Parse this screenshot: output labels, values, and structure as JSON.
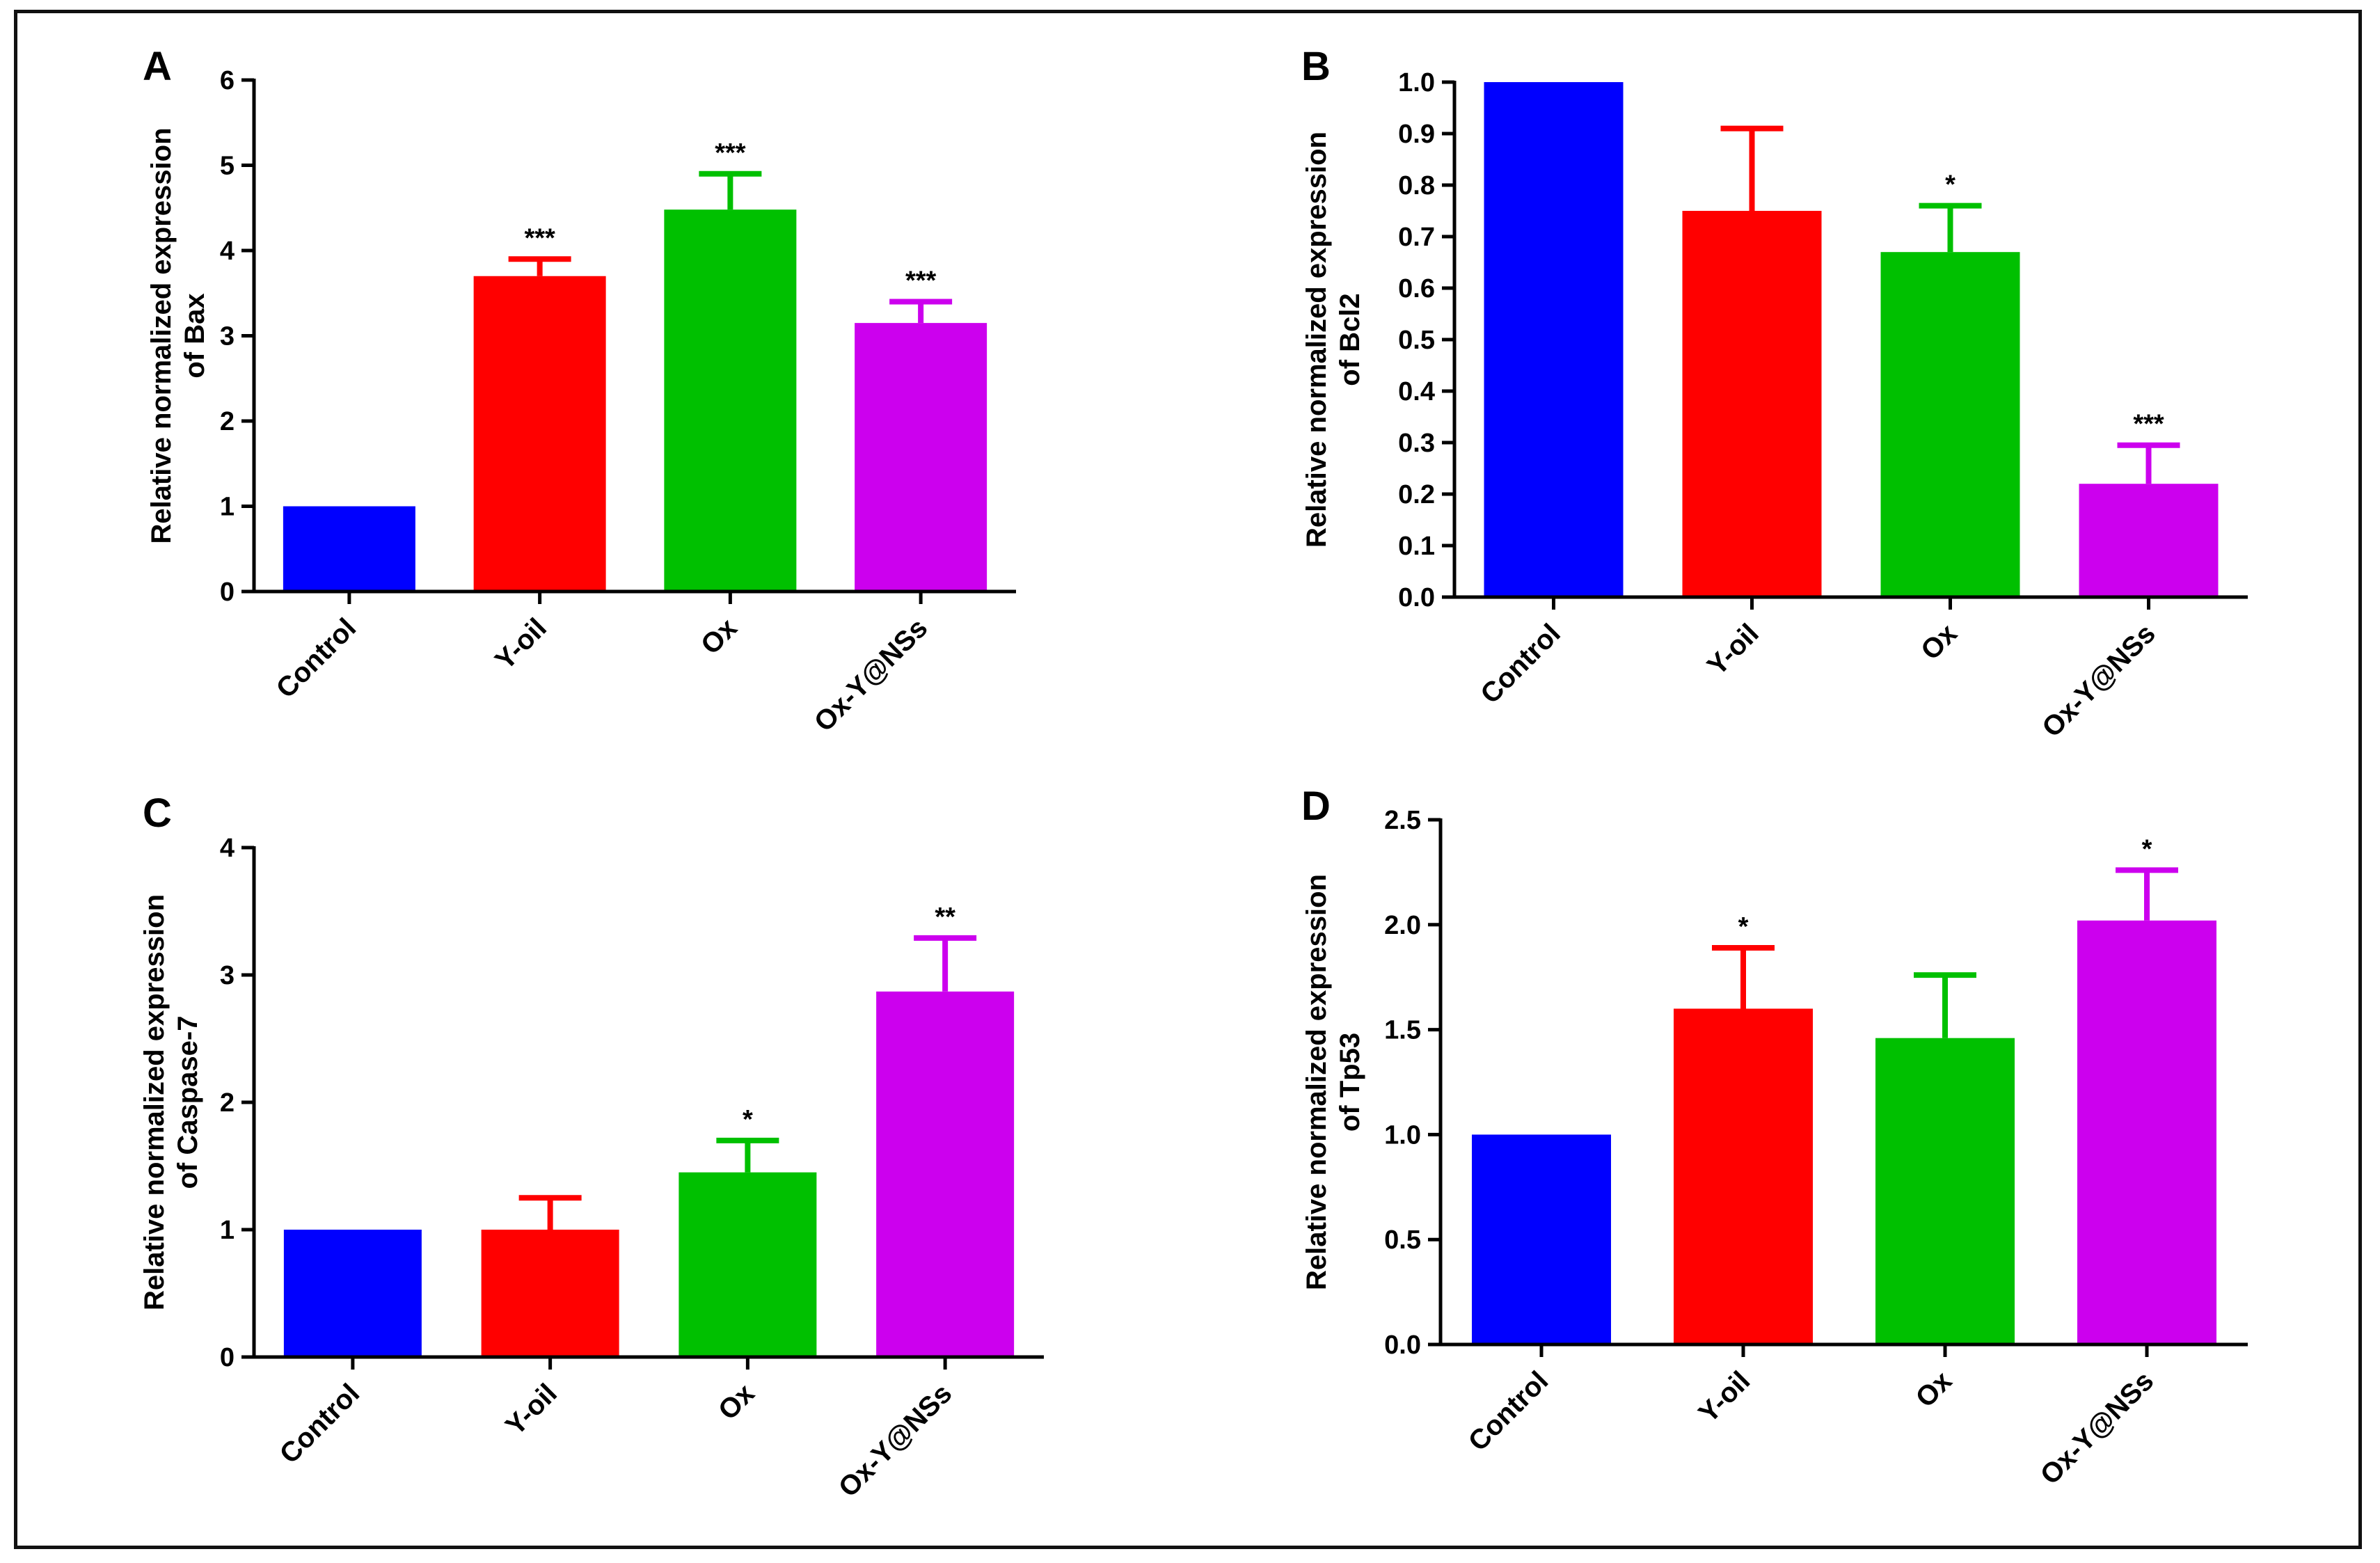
{
  "colors": {
    "Control": "#0000ff",
    "Y-oil": "#ff0000",
    "Ox": "#00c000",
    "Ox-Y@NSs": "#cc00ee",
    "axis": "#000000"
  },
  "chart_data": [
    {
      "panel": "A",
      "type": "bar",
      "ylabel": [
        "Relative normalized expression",
        "of Bax"
      ],
      "categories": [
        "Control",
        "Y-oil",
        "Ox",
        "Ox-Y@NSs"
      ],
      "values": [
        1.0,
        3.7,
        4.48,
        3.15
      ],
      "errors": [
        0.0,
        0.2,
        0.42,
        0.25
      ],
      "significance": [
        "",
        "***",
        "***",
        "***"
      ],
      "ylim": [
        0,
        6
      ],
      "yticks": [
        0,
        1,
        2,
        3,
        4,
        5,
        6
      ],
      "ytick_labels": [
        "0",
        "1",
        "2",
        "3",
        "4",
        "5",
        "6"
      ]
    },
    {
      "panel": "B",
      "type": "bar",
      "ylabel": [
        "Relative normalized expression",
        "of Bcl2"
      ],
      "categories": [
        "Control",
        "Y-oil",
        "Ox",
        "Ox-Y@NSs"
      ],
      "values": [
        1.0,
        0.75,
        0.67,
        0.22
      ],
      "errors": [
        0.0,
        0.16,
        0.09,
        0.075
      ],
      "significance": [
        "",
        "",
        "*",
        "***"
      ],
      "ylim": [
        0,
        1.0
      ],
      "yticks": [
        0,
        0.1,
        0.2,
        0.3,
        0.4,
        0.5,
        0.6,
        0.7,
        0.8,
        0.9,
        1.0
      ],
      "ytick_labels": [
        "0.0",
        "0.1",
        "0.2",
        "0.3",
        "0.4",
        "0.5",
        "0.6",
        "0.7",
        "0.8",
        "0.9",
        "1.0"
      ]
    },
    {
      "panel": "C",
      "type": "bar",
      "ylabel": [
        "Relative normalized expression",
        "of Caspase-7"
      ],
      "categories": [
        "Control",
        "Y-oil",
        "Ox",
        "Ox-Y@NSs"
      ],
      "values": [
        1.0,
        1.0,
        1.45,
        2.87
      ],
      "errors": [
        0.0,
        0.25,
        0.25,
        0.42
      ],
      "significance": [
        "",
        "",
        "*",
        "**"
      ],
      "ylim": [
        0,
        4
      ],
      "yticks": [
        0,
        1,
        2,
        3,
        4
      ],
      "ytick_labels": [
        "0",
        "1",
        "2",
        "3",
        "4"
      ]
    },
    {
      "panel": "D",
      "type": "bar",
      "ylabel": [
        "Relative normalized expression",
        "of Tp53"
      ],
      "categories": [
        "Control",
        "Y-oil",
        "Ox",
        "Ox-Y@NSs"
      ],
      "values": [
        1.0,
        1.6,
        1.46,
        2.02
      ],
      "errors": [
        0.0,
        0.29,
        0.3,
        0.24
      ],
      "significance": [
        "",
        "*",
        "",
        "*"
      ],
      "ylim": [
        0,
        2.5
      ],
      "yticks": [
        0,
        0.5,
        1.0,
        1.5,
        2.0,
        2.5
      ],
      "ytick_labels": [
        "0.0",
        "0.5",
        "1.0",
        "1.5",
        "2.0",
        "2.5"
      ]
    }
  ]
}
